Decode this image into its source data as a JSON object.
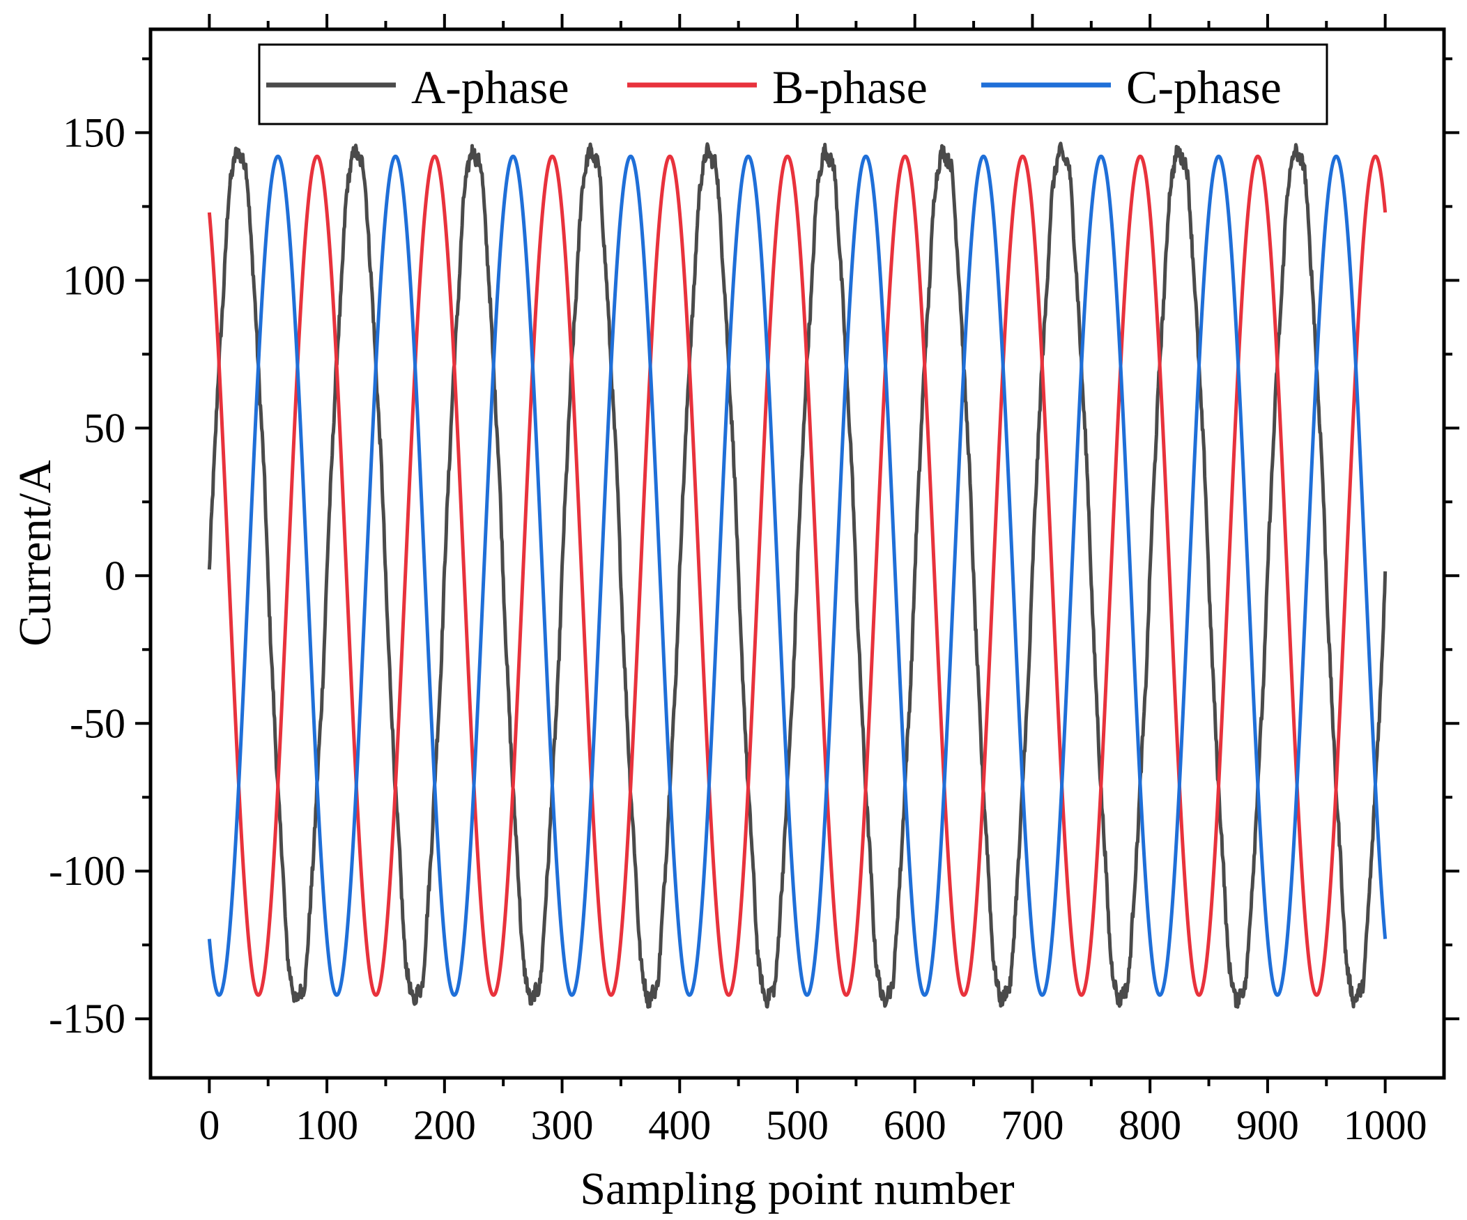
{
  "chart_data": {
    "type": "line",
    "title": "",
    "xlabel": "Sampling point number",
    "ylabel": "Current/A",
    "xlim": [
      -50,
      1050
    ],
    "ylim": [
      -170,
      185
    ],
    "x_ticks": [
      0,
      100,
      200,
      300,
      400,
      500,
      600,
      700,
      800,
      900,
      1000
    ],
    "y_ticks": [
      150,
      100,
      50,
      0,
      -50,
      -100,
      -150
    ],
    "x_tick_labels": [
      "0",
      "100",
      "200",
      "300",
      "400",
      "500",
      "600",
      "700",
      "800",
      "900",
      "1000"
    ],
    "y_tick_labels": [
      "150",
      "100",
      "50",
      "0",
      "-50",
      "-100",
      "-150"
    ],
    "grid": false,
    "legend_position": "top",
    "sampling": {
      "x_start": 0,
      "x_end": 1000,
      "points_per_cycle": 100
    },
    "series": [
      {
        "name": "A-phase",
        "color": "#4a4a4a",
        "amplitude": 145,
        "phase_deg": 0,
        "noise": "measured"
      },
      {
        "name": "B-phase",
        "color": "#e8323c",
        "amplitude": 142,
        "phase_deg": 120,
        "noise": "none"
      },
      {
        "name": "C-phase",
        "color": "#1f6fd8",
        "amplitude": 142,
        "phase_deg": -120,
        "noise": "none"
      }
    ]
  }
}
